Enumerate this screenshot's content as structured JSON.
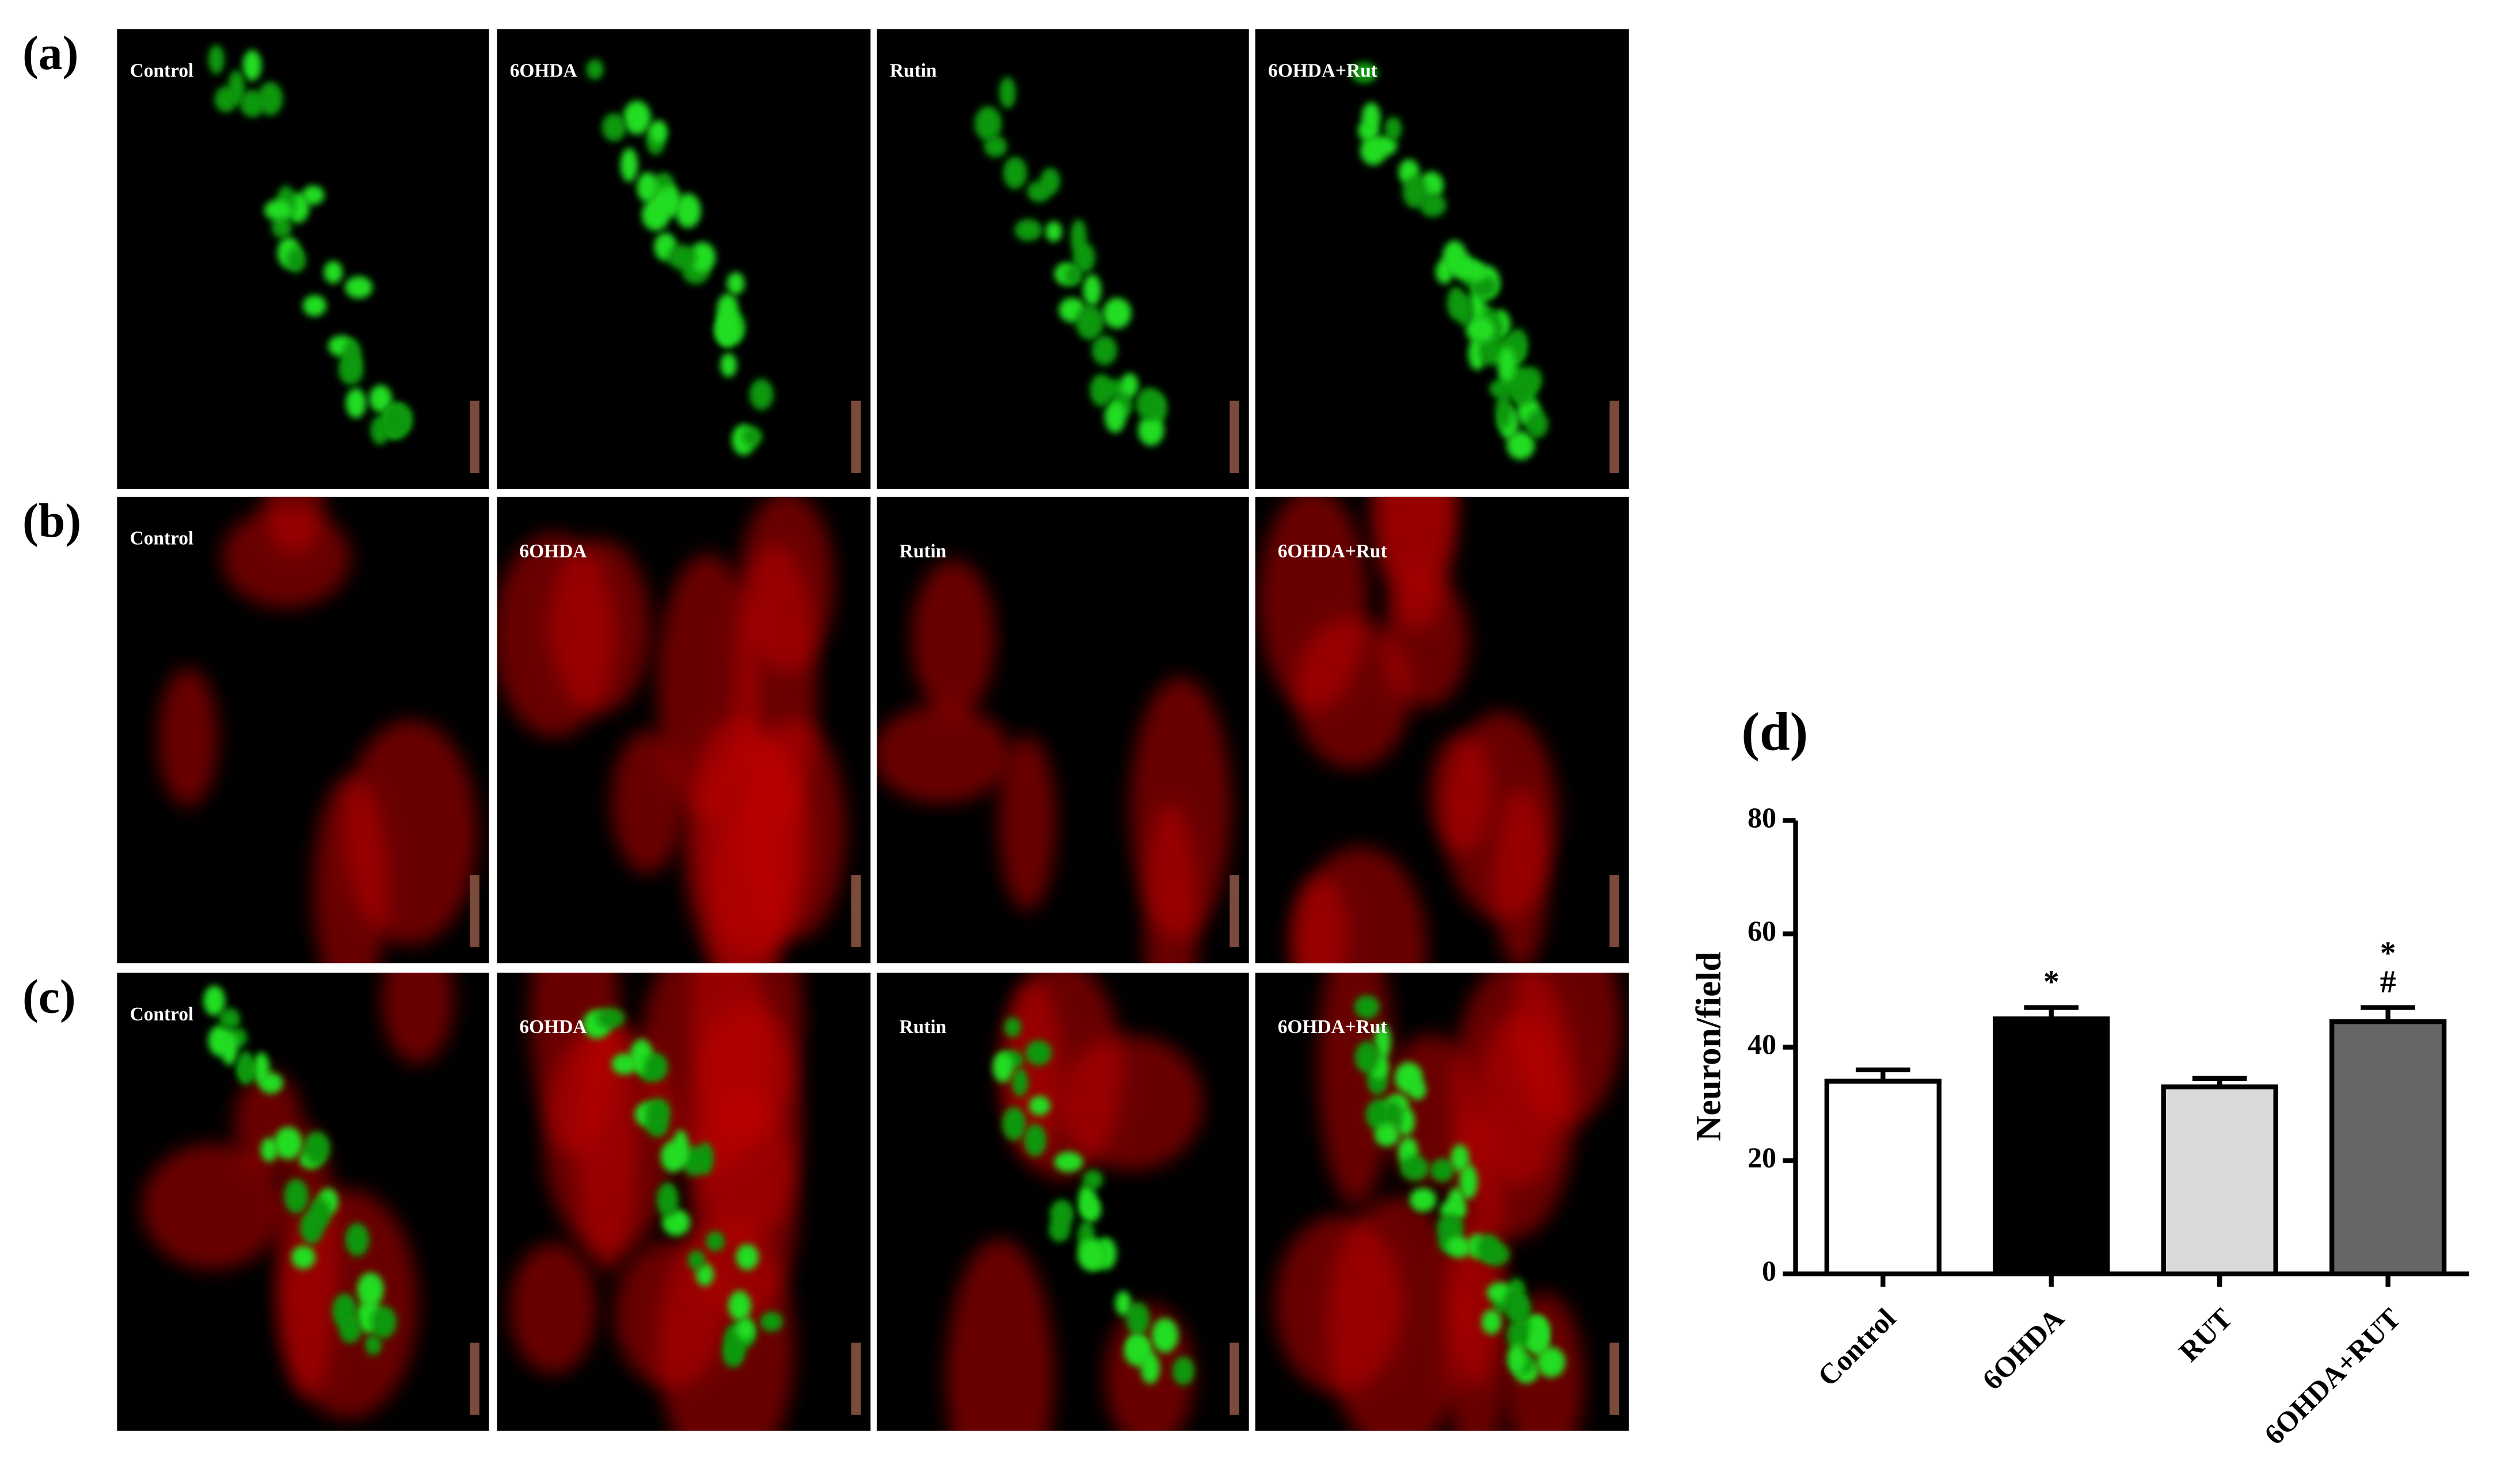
{
  "panels": [
    {
      "label": "(a)",
      "images": [
        "Control",
        "6OHDA",
        "Rutin",
        "6OHDA+Rut"
      ]
    },
    {
      "label": "(b)",
      "images": [
        "Control",
        "6OHDA",
        "Rutin",
        "6OHDA+Rut"
      ]
    },
    {
      "label": "(c)",
      "images": [
        "Control",
        "6OHDA",
        "Rutin",
        "6OHDA+Rut"
      ]
    }
  ],
  "chart_data": {
    "type": "bar",
    "title": "(d)",
    "y_label": "Neuron/field",
    "categories": [
      "Control",
      "6OHDA",
      "RUT",
      "6OHDA+RUT"
    ],
    "values": [
      34,
      45,
      33,
      44.5
    ],
    "errors": [
      2,
      2,
      1.5,
      2.5
    ],
    "colors": [
      "#ffffff",
      "#000000",
      "#d9d9d9",
      "#666666"
    ],
    "significance": [
      [],
      [
        "*"
      ],
      [],
      [
        "*",
        "#"
      ]
    ],
    "ylim": [
      0,
      80
    ],
    "yticks": [
      0,
      20,
      40,
      60,
      80
    ]
  }
}
